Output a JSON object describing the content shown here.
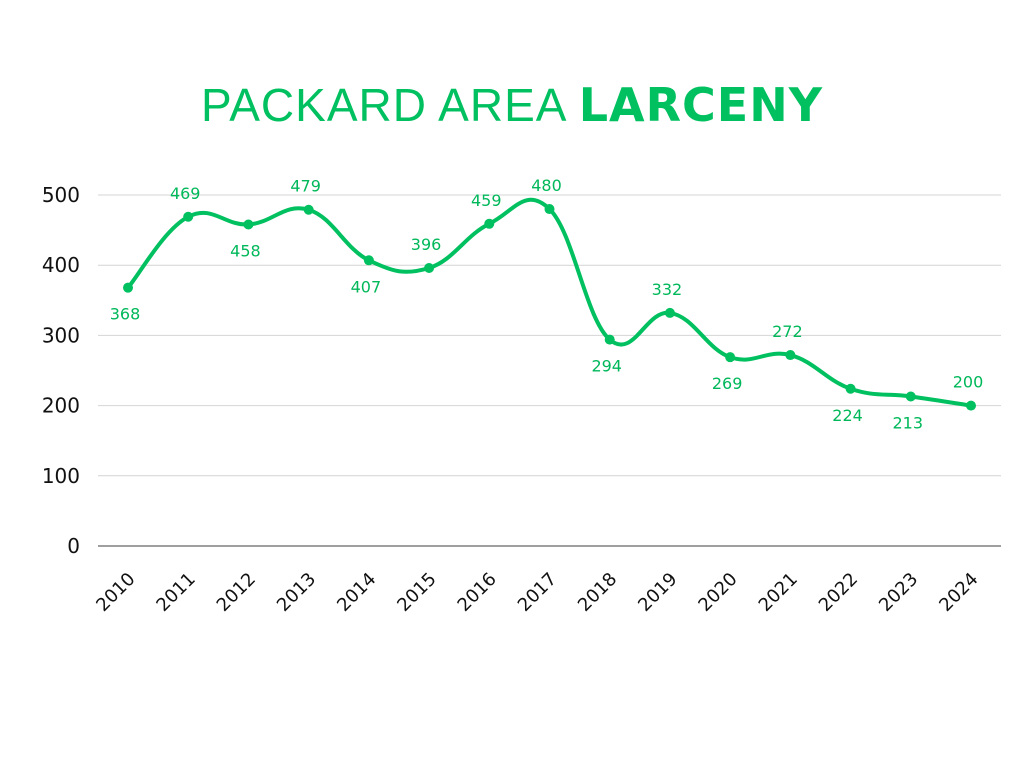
{
  "chart_data": {
    "type": "line",
    "title_part1": "PACKARD AREA ",
    "title_part2": "LARCENY",
    "xlabel": "",
    "ylabel": "",
    "ylim": [
      0,
      500
    ],
    "yticks": [
      "0",
      "100",
      "200",
      "300",
      "400",
      "500"
    ],
    "grid": true,
    "categories": [
      "2010",
      "2011",
      "2012",
      "2013",
      "2014",
      "2015",
      "2016",
      "2017",
      "2018",
      "2019",
      "2020",
      "2021",
      "2022",
      "2023",
      "2024"
    ],
    "series": [
      {
        "name": "Larceny",
        "color": "#00c060",
        "values": [
          368,
          469,
          458,
          479,
          407,
          396,
          459,
          480,
          294,
          332,
          269,
          272,
          224,
          213,
          200
        ],
        "label_side": [
          "below",
          "above",
          "below",
          "above",
          "below",
          "above",
          "above",
          "above",
          "below",
          "above",
          "below",
          "above",
          "below",
          "below",
          "above"
        ]
      }
    ]
  }
}
